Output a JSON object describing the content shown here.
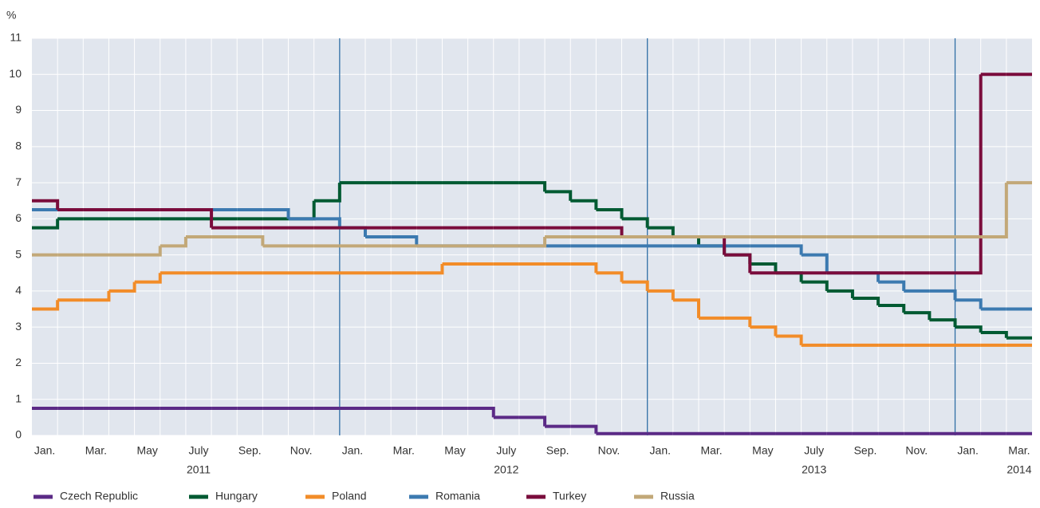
{
  "chart_data": {
    "type": "step",
    "y_label": "%",
    "categories": [
      "Jan.",
      null,
      "Mar.",
      null,
      "May",
      null,
      "July",
      null,
      "Sep.",
      null,
      "Nov.",
      null,
      "Jan.",
      null,
      "Mar.",
      null,
      "May",
      null,
      "July",
      null,
      "Sep.",
      null,
      "Nov.",
      null,
      "Jan.",
      null,
      "Mar.",
      null,
      "May",
      null,
      "July",
      null,
      "Sep.",
      null,
      "Nov.",
      null,
      "Jan.",
      null,
      "Mar."
    ],
    "years": [
      null,
      null,
      null,
      null,
      null,
      null,
      "2011",
      null,
      null,
      null,
      null,
      null,
      null,
      null,
      null,
      null,
      null,
      null,
      "2012",
      null,
      null,
      null,
      null,
      null,
      null,
      null,
      null,
      null,
      null,
      null,
      "2013",
      null,
      null,
      null,
      null,
      null,
      null,
      null,
      "2014"
    ],
    "series": [
      {
        "name": "Czech Republic",
        "color": "#5b2a86",
        "values": [
          0.75,
          0.75,
          0.75,
          0.75,
          0.75,
          0.75,
          0.75,
          0.75,
          0.75,
          0.75,
          0.75,
          0.75,
          0.75,
          0.75,
          0.75,
          0.75,
          0.75,
          0.75,
          0.5,
          0.5,
          0.25,
          0.25,
          0.05,
          0.05,
          0.05,
          0.05,
          0.05,
          0.05,
          0.05,
          0.05,
          0.05,
          0.05,
          0.05,
          0.05,
          0.05,
          0.05,
          0.05,
          0.05,
          0.05
        ]
      },
      {
        "name": "Hungary",
        "color": "#005a32",
        "values": [
          5.75,
          6,
          6,
          6,
          6,
          6,
          6,
          6,
          6,
          6,
          6,
          6.5,
          7,
          7,
          7,
          7,
          7,
          7,
          7,
          7,
          6.75,
          6.5,
          6.25,
          6,
          5.75,
          5.5,
          5.25,
          5,
          4.75,
          4.5,
          4.25,
          4,
          3.8,
          3.6,
          3.4,
          3.2,
          3,
          2.85,
          2.7
        ]
      },
      {
        "name": "Poland",
        "color": "#f28c28",
        "values": [
          3.5,
          3.75,
          3.75,
          4,
          4.25,
          4.5,
          4.5,
          4.5,
          4.5,
          4.5,
          4.5,
          4.5,
          4.5,
          4.5,
          4.5,
          4.5,
          4.75,
          4.75,
          4.75,
          4.75,
          4.75,
          4.75,
          4.5,
          4.25,
          4,
          3.75,
          3.25,
          3.25,
          3,
          2.75,
          2.5,
          2.5,
          2.5,
          2.5,
          2.5,
          2.5,
          2.5,
          2.5,
          2.5
        ]
      },
      {
        "name": "Romania",
        "color": "#3c7ab0",
        "values": [
          6.25,
          6.25,
          6.25,
          6.25,
          6.25,
          6.25,
          6.25,
          6.25,
          6.25,
          6.25,
          6,
          6,
          5.75,
          5.5,
          5.5,
          5.25,
          5.25,
          5.25,
          5.25,
          5.25,
          5.25,
          5.25,
          5.25,
          5.25,
          5.25,
          5.25,
          5.25,
          5.25,
          5.25,
          5.25,
          5,
          4.5,
          4.5,
          4.25,
          4,
          4,
          3.75,
          3.5,
          3.5
        ]
      },
      {
        "name": "Turkey",
        "color": "#7a0c3c",
        "values": [
          6.5,
          6.25,
          6.25,
          6.25,
          6.25,
          6.25,
          6.25,
          5.75,
          5.75,
          5.75,
          5.75,
          5.75,
          5.75,
          5.75,
          5.75,
          5.75,
          5.75,
          5.75,
          5.75,
          5.75,
          5.75,
          5.75,
          5.75,
          5.5,
          5.5,
          5.5,
          5.5,
          5,
          4.5,
          4.5,
          4.5,
          4.5,
          4.5,
          4.5,
          4.5,
          4.5,
          4.5,
          10,
          10
        ]
      },
      {
        "name": "Russia",
        "color": "#c2a878",
        "values": [
          5,
          5,
          5,
          5,
          5,
          5.25,
          5.5,
          5.5,
          5.5,
          5.25,
          5.25,
          5.25,
          5.25,
          5.25,
          5.25,
          5.25,
          5.25,
          5.25,
          5.25,
          5.25,
          5.5,
          5.5,
          5.5,
          5.5,
          5.5,
          5.5,
          5.5,
          5.5,
          5.5,
          5.5,
          5.5,
          5.5,
          5.5,
          5.5,
          5.5,
          5.5,
          5.5,
          5.5,
          7
        ]
      }
    ],
    "ylim": [
      0,
      11
    ],
    "yticks": [
      0,
      1,
      2,
      3,
      4,
      5,
      6,
      7,
      8,
      9,
      10,
      11
    ],
    "grid": true
  }
}
